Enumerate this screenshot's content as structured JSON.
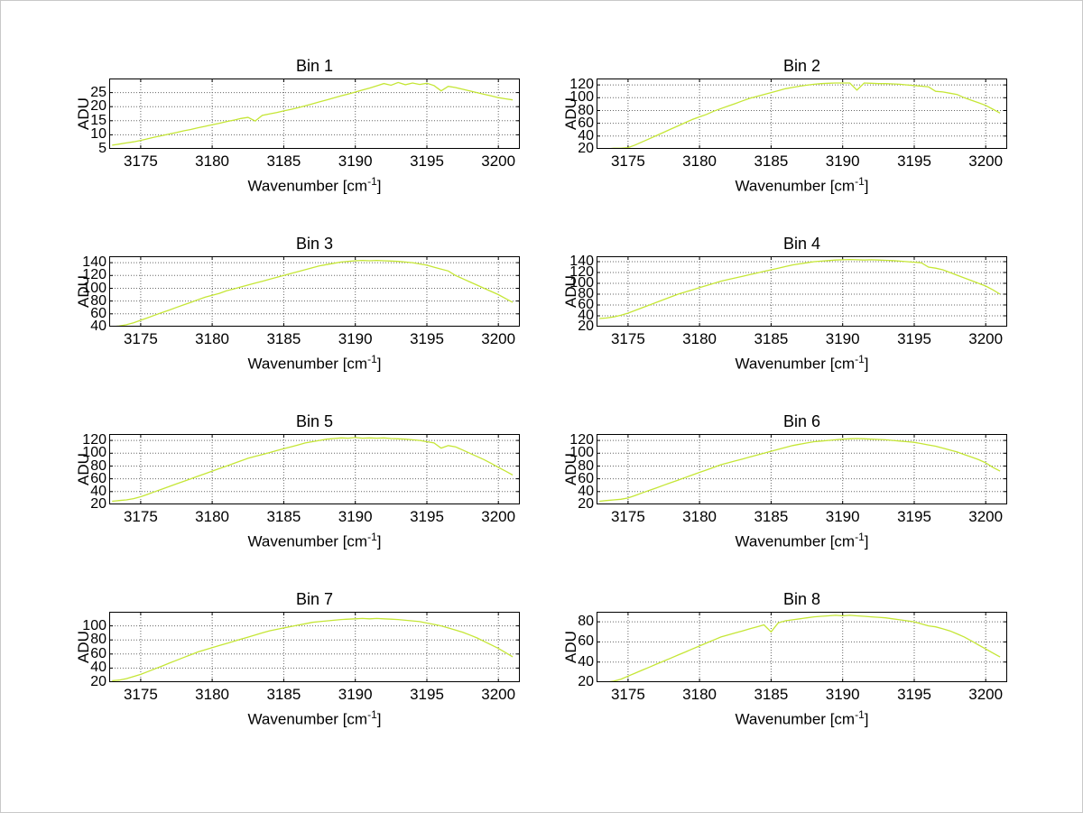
{
  "figure": {
    "background": "#ffffff"
  },
  "chart_data": {
    "type": "line",
    "layout": "4x2-grid",
    "shared": {
      "ylabel": "ADU",
      "xlabel_main": "Wavenumber [cm",
      "xlabel_sup": "-1",
      "xlabel_close": "]",
      "xlim": [
        3172.8,
        3201.5
      ],
      "xticks": [
        3175,
        3180,
        3185,
        3190,
        3195,
        3200
      ],
      "x_start": 3173,
      "x_step": 0.5,
      "grid": true,
      "legend": "none",
      "line_color": "#c5e636",
      "grid_color": "#666666",
      "axis_color": "#000000"
    },
    "charts": [
      {
        "title": "Bin 1",
        "ylim": [
          5,
          30
        ],
        "yticks": [
          5,
          10,
          15,
          20,
          25
        ],
        "values": [
          6.3,
          6.7,
          7.1,
          7.5,
          8,
          8.6,
          9.2,
          9.7,
          10.3,
          10.8,
          11.4,
          11.9,
          12.5,
          13,
          13.6,
          14.1,
          14.7,
          15.2,
          15.8,
          16.2,
          14.9,
          16.9,
          17.4,
          17.9,
          18.5,
          19,
          19.6,
          20.3,
          21,
          21.7,
          22.4,
          23.1,
          23.8,
          24.5,
          25.2,
          25.9,
          26.6,
          27.4,
          28.2,
          27.6,
          28.6,
          27.8,
          28.4,
          27.9,
          28.3,
          27.5,
          25.6,
          27.2,
          26.8,
          26.2,
          25.6,
          25,
          24.4,
          23.8,
          23.2,
          22.8,
          22.4
        ]
      },
      {
        "title": "Bin 2",
        "ylim": [
          20,
          130
        ],
        "yticks": [
          20,
          40,
          60,
          80,
          100,
          120
        ],
        "values": [
          20,
          20,
          21,
          21,
          22,
          26,
          31,
          36,
          41,
          46,
          51,
          56,
          61,
          66,
          70,
          74,
          79,
          83,
          87,
          91,
          95,
          99,
          102,
          105,
          108,
          111,
          114,
          116,
          118,
          119.5,
          121,
          122,
          122.5,
          123,
          123,
          123,
          112,
          123,
          122.5,
          122,
          122,
          121.5,
          121,
          120,
          119,
          118,
          117,
          110,
          109,
          107,
          105,
          100,
          96,
          92,
          88,
          82,
          76
        ]
      },
      {
        "title": "Bin 3",
        "ylim": [
          40,
          150
        ],
        "yticks": [
          40,
          60,
          80,
          100,
          120,
          140
        ],
        "values": [
          40,
          41,
          43,
          46,
          50,
          54,
          58,
          62,
          66,
          70,
          74,
          78,
          82,
          86,
          89,
          92,
          96,
          99,
          102,
          105,
          108,
          111,
          114,
          117,
          120,
          123,
          126,
          129,
          132,
          135,
          137,
          139,
          141,
          142,
          143,
          143.5,
          143,
          143.5,
          143,
          142.5,
          142,
          141,
          140,
          138,
          136,
          133,
          130,
          127,
          120,
          115,
          110,
          105,
          100,
          95,
          90,
          84,
          78
        ]
      },
      {
        "title": "Bin 4",
        "ylim": [
          20,
          150
        ],
        "yticks": [
          20,
          40,
          60,
          80,
          100,
          120,
          140
        ],
        "values": [
          35,
          36,
          38,
          41,
          45,
          50,
          55,
          60,
          65,
          70,
          75,
          80,
          84,
          88,
          92,
          96,
          100,
          104,
          107,
          110,
          113,
          116,
          119,
          122,
          125,
          128,
          131,
          134,
          136,
          138,
          140,
          141,
          142,
          143,
          143.5,
          144,
          143.5,
          143,
          143.5,
          143,
          142.5,
          142,
          141,
          140,
          139,
          138,
          130,
          128,
          125,
          120,
          115,
          110,
          105,
          100,
          95,
          88,
          80
        ]
      },
      {
        "title": "Bin 5",
        "ylim": [
          20,
          130
        ],
        "yticks": [
          20,
          40,
          60,
          80,
          100,
          120
        ],
        "values": [
          25,
          26,
          27,
          29,
          32,
          36,
          40,
          44,
          48,
          52,
          56,
          60,
          64,
          68,
          72,
          76,
          80,
          84,
          88,
          92,
          95,
          98,
          101,
          104,
          107,
          110,
          113,
          116,
          118,
          120,
          122,
          123,
          124,
          123.5,
          124.5,
          123.5,
          124,
          123.5,
          124,
          123,
          122.5,
          122,
          121,
          120,
          118,
          116,
          108,
          112,
          110,
          105,
          100,
          95,
          90,
          84,
          78,
          72,
          66
        ]
      },
      {
        "title": "Bin 6",
        "ylim": [
          20,
          130
        ],
        "yticks": [
          20,
          40,
          60,
          80,
          100,
          120
        ],
        "values": [
          25,
          26,
          27,
          28,
          30,
          34,
          38,
          42,
          46,
          50,
          54,
          58,
          62,
          66,
          70,
          74,
          78,
          82,
          85,
          88,
          91,
          94,
          97,
          100,
          103,
          106,
          109,
          112,
          114,
          116,
          118,
          119,
          120,
          121,
          122,
          122.5,
          123,
          122.5,
          122,
          121.5,
          121,
          120,
          119,
          118,
          117,
          115,
          113,
          111,
          108,
          105,
          102,
          98,
          94,
          90,
          85,
          78,
          72
        ]
      },
      {
        "title": "Bin 7",
        "ylim": [
          20,
          120
        ],
        "yticks": [
          20,
          40,
          60,
          80,
          100
        ],
        "values": [
          22,
          23,
          25,
          28,
          31,
          35,
          39,
          43,
          47,
          51,
          55,
          59,
          63,
          66,
          69,
          72,
          75,
          78,
          81,
          84,
          87,
          90,
          93,
          95,
          97,
          99,
          101,
          103,
          105,
          106,
          107,
          108,
          109,
          109.5,
          110,
          110.5,
          110,
          110.5,
          110,
          109.5,
          109,
          108,
          107,
          106,
          104,
          102,
          100,
          97,
          94,
          91,
          87,
          83,
          78,
          73,
          68,
          62,
          56
        ]
      },
      {
        "title": "Bin 8",
        "ylim": [
          20,
          90
        ],
        "yticks": [
          20,
          40,
          60,
          80
        ],
        "values": [
          20,
          20,
          21,
          23,
          26,
          29,
          32,
          35,
          38,
          41,
          44,
          47,
          50,
          53,
          56,
          59,
          62,
          65,
          67,
          69,
          71,
          73,
          75,
          77,
          70,
          79,
          81,
          82,
          83,
          84,
          85,
          85.5,
          86,
          86.5,
          86,
          86.5,
          86,
          85.5,
          85,
          84.5,
          84,
          83,
          82,
          81,
          80,
          78,
          76,
          75,
          73,
          71,
          68,
          65,
          61,
          57,
          53,
          49,
          45
        ]
      }
    ]
  }
}
